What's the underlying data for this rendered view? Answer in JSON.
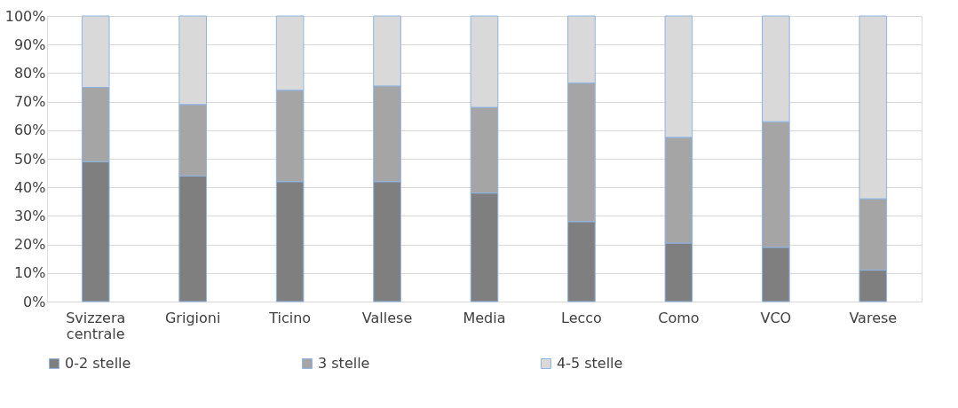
{
  "chart_data": {
    "type": "bar",
    "stacked": true,
    "categories": [
      "Svizzera centrale",
      "Grigioni",
      "Ticino",
      "Vallese",
      "Media",
      "Lecco",
      "Como",
      "VCO",
      "Varese"
    ],
    "series": [
      {
        "name": "0-2 stelle",
        "color": "#7f7f7f",
        "values": [
          49,
          44,
          42,
          42,
          38,
          28,
          20.5,
          19,
          11
        ]
      },
      {
        "name": "3 stelle",
        "color": "#a5a5a5",
        "values": [
          26,
          25,
          32,
          33.5,
          30,
          48.5,
          37,
          44,
          25
        ]
      },
      {
        "name": "4-5 stelle",
        "color": "#d9d9d9",
        "values": [
          25,
          31,
          26,
          24.5,
          32,
          23.5,
          42.5,
          37,
          64
        ]
      }
    ],
    "ylim": [
      0,
      100
    ],
    "yticks": [
      {
        "value": 0,
        "label": "0%"
      },
      {
        "value": 10,
        "label": "10%"
      },
      {
        "value": 20,
        "label": "20%"
      },
      {
        "value": 30,
        "label": "30%"
      },
      {
        "value": 40,
        "label": "40%"
      },
      {
        "value": 50,
        "label": "50%"
      },
      {
        "value": 60,
        "label": "60%"
      },
      {
        "value": 70,
        "label": "70%"
      },
      {
        "value": 80,
        "label": "80%"
      },
      {
        "value": 90,
        "label": "90%"
      },
      {
        "value": 100,
        "label": "100%"
      }
    ],
    "grid": "y",
    "legend": "bottom"
  }
}
